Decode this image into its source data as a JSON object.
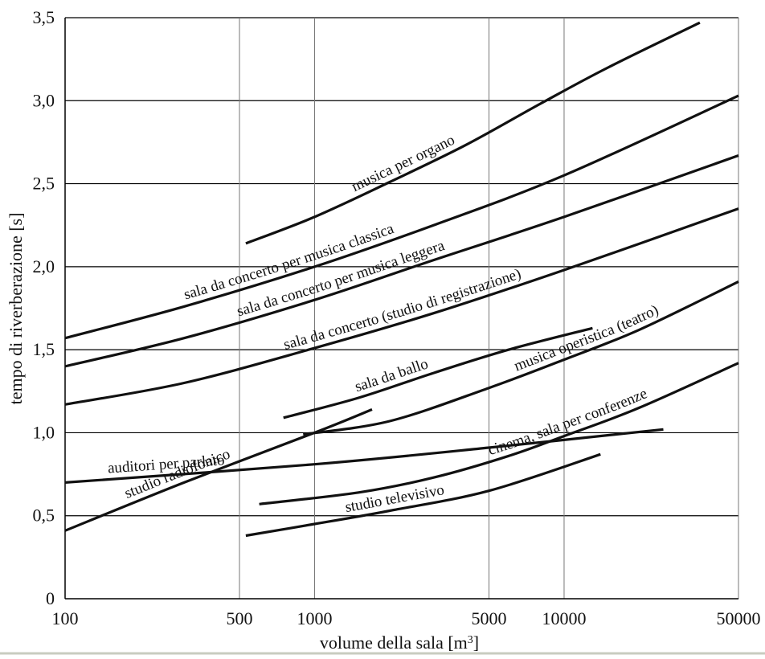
{
  "chart_data": {
    "type": "line",
    "title": "",
    "xlabel": "volume della sala [m",
    "xlabel_sup": "3",
    "xlabel_end": "]",
    "ylabel": "tempo di riverberazione [s]",
    "xscale": "log",
    "xlim": [
      100,
      50000
    ],
    "ylim": [
      0,
      3.5
    ],
    "grid": true,
    "legend": "none (labels on curves)",
    "xticks": [
      {
        "value": 100,
        "label": "100"
      },
      {
        "value": 500,
        "label": "500"
      },
      {
        "value": 1000,
        "label": "1000"
      },
      {
        "value": 5000,
        "label": "5000"
      },
      {
        "value": 10000,
        "label": "10000"
      },
      {
        "value": 50000,
        "label": "50000"
      }
    ],
    "yticks": [
      {
        "value": 0,
        "label": "0"
      },
      {
        "value": 0.5,
        "label": "0,5"
      },
      {
        "value": 1.0,
        "label": "1,0"
      },
      {
        "value": 1.5,
        "label": "1,5"
      },
      {
        "value": 2.0,
        "label": "2,0"
      },
      {
        "value": 2.5,
        "label": "2,5"
      },
      {
        "value": 3.0,
        "label": "3,0"
      },
      {
        "value": 3.5,
        "label": "3,5"
      }
    ],
    "series": [
      {
        "name": "musica per organo",
        "label_at": 0.35,
        "x": [
          530,
          1000,
          2000,
          4000,
          8000,
          15000,
          35000
        ],
        "y": [
          2.14,
          2.3,
          2.51,
          2.73,
          2.98,
          3.2,
          3.47
        ]
      },
      {
        "name": "sala da concerto per musica classica",
        "label_at": 0.33,
        "x": [
          100,
          300,
          1000,
          3000,
          10000,
          50000
        ],
        "y": [
          1.57,
          1.76,
          2.0,
          2.25,
          2.55,
          3.03
        ]
      },
      {
        "name": "sala da concerto per musica leggera",
        "label_at": 0.41,
        "x": [
          100,
          300,
          1000,
          3000,
          10000,
          50000
        ],
        "y": [
          1.4,
          1.57,
          1.8,
          2.04,
          2.3,
          2.67
        ]
      },
      {
        "name": "sala da concerto (studio di registrazione)",
        "label_at": 0.5,
        "x": [
          100,
          300,
          1000,
          3000,
          10000,
          50000
        ],
        "y": [
          1.17,
          1.3,
          1.51,
          1.72,
          1.98,
          2.35
        ]
      },
      {
        "name": "sala da ballo",
        "label_at": 0.36,
        "x": [
          750,
          1500,
          3000,
          6000,
          13000
        ],
        "y": [
          1.09,
          1.21,
          1.36,
          1.5,
          1.63
        ]
      },
      {
        "name": "musica operistica (teatro)",
        "label_at": 0.65,
        "x": [
          900,
          2000,
          5000,
          10000,
          20000,
          50000
        ],
        "y": [
          0.99,
          1.07,
          1.27,
          1.44,
          1.62,
          1.91
        ]
      },
      {
        "name": "cinema, sala per conferenze",
        "label_at": 0.64,
        "x": [
          600,
          1500,
          3000,
          6000,
          10000,
          20000,
          50000
        ],
        "y": [
          0.57,
          0.64,
          0.73,
          0.86,
          0.98,
          1.15,
          1.42
        ]
      },
      {
        "name": "studio televisivo",
        "label_at": 0.42,
        "x": [
          530,
          1000,
          2000,
          5000,
          14000
        ],
        "y": [
          0.38,
          0.45,
          0.53,
          0.65,
          0.87
        ]
      },
      {
        "name": "auditori per parlato",
        "label_at": 0.17,
        "x": [
          100,
          1000,
          5000,
          25000
        ],
        "y": [
          0.7,
          0.81,
          0.91,
          1.02
        ]
      },
      {
        "name": "studio radiofonico",
        "label_at": 0.38,
        "x": [
          100,
          300,
          1000,
          1700
        ],
        "y": [
          0.41,
          0.7,
          1.0,
          1.14
        ]
      }
    ]
  }
}
